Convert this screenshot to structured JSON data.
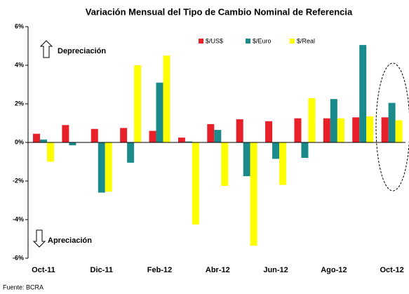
{
  "chart_data": {
    "type": "bar",
    "title": "Variación Mensual del Tipo de Cambio Nominal de Referencia",
    "annotations": [
      "Depreciación",
      "Apreciación"
    ],
    "source": "Fuente: BCRA",
    "categories": [
      "Oct-11",
      null,
      "Dic-11",
      null,
      "Feb-12",
      null,
      "Abr-12",
      null,
      "Jun-12",
      null,
      "Ago-12",
      null,
      "Oct-12"
    ],
    "series": [
      {
        "name": "$/US$",
        "color": "#e8202a",
        "values": [
          0.45,
          0.9,
          0.7,
          0.75,
          0.6,
          0.25,
          0.95,
          1.2,
          1.1,
          1.25,
          1.25,
          1.3,
          1.3
        ]
      },
      {
        "name": "$/Euro",
        "color": "#1a8a8a",
        "values": [
          0.15,
          -0.15,
          -2.6,
          -1.05,
          3.1,
          0.05,
          0.65,
          -1.75,
          -0.85,
          -0.8,
          2.25,
          5.05,
          2.05
        ]
      },
      {
        "name": "$/Real",
        "color": "#ffff00",
        "values": [
          -1.0,
          0,
          -2.55,
          4.0,
          4.5,
          -4.25,
          -2.25,
          -5.35,
          -2.2,
          2.3,
          1.25,
          1.35,
          1.15
        ]
      }
    ],
    "ylim": [
      -6,
      6
    ],
    "yticks": [
      {
        "value": -6,
        "label": "-6%"
      },
      {
        "value": -4,
        "label": "-4%"
      },
      {
        "value": -2,
        "label": "-2%"
      },
      {
        "value": 0,
        "label": "0%"
      },
      {
        "value": 2,
        "label": "2%"
      },
      {
        "value": 4,
        "label": "4%"
      },
      {
        "value": 6,
        "label": "6%"
      }
    ],
    "legend": "top",
    "grid": false
  }
}
